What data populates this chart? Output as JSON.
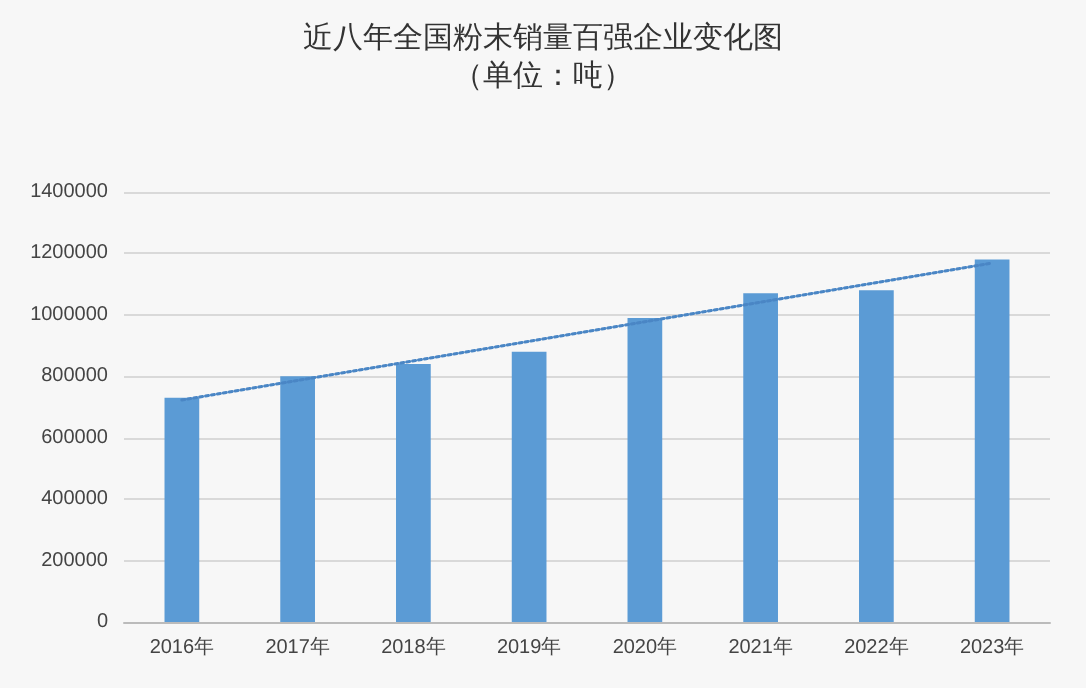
{
  "chart_data": {
    "type": "bar",
    "title": "近八年全国粉末销量百强企业变化图",
    "subtitle": "（单位：吨）",
    "categories": [
      "2016年",
      "2017年",
      "2018年",
      "2019年",
      "2020年",
      "2021年",
      "2022年",
      "2023年"
    ],
    "series": [
      {
        "color": "#5b9bd5",
        "values": [
          730000,
          800000,
          840000,
          880000,
          990000,
          1070000,
          1080000,
          1180000
        ]
      },
      {
        "type": "line",
        "color": "#4a86c5",
        "x": [
          "2016年",
          "2023年"
        ],
        "values": [
          723000,
          1169000
        ],
        "line_style": "dotted",
        "marker": "none"
      }
    ],
    "ylim": [
      0,
      1400000
    ],
    "yticks": [
      0,
      200000,
      400000,
      600000,
      800000,
      1000000,
      1200000,
      1400000
    ],
    "grid": "y"
  }
}
